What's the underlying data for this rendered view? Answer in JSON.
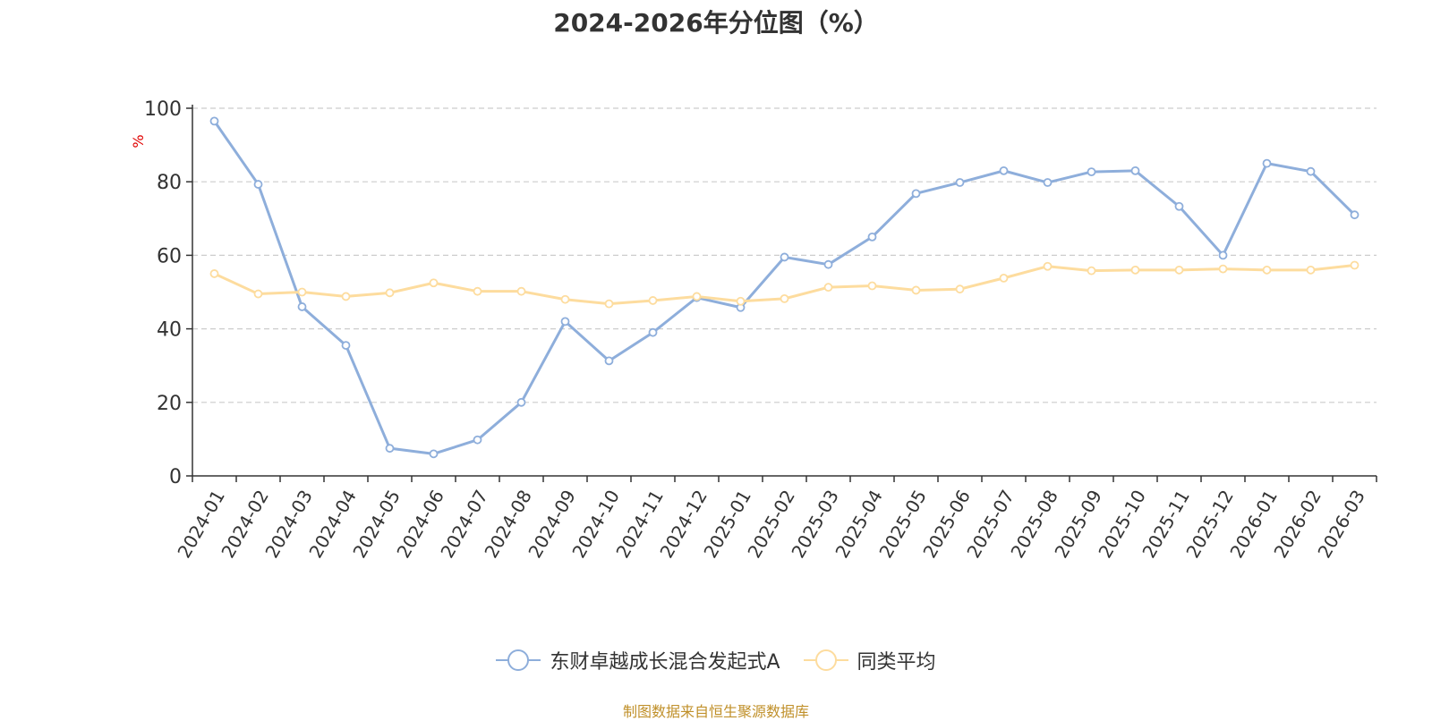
{
  "chart_data": {
    "type": "line",
    "title": "2024-2026年分位图（%）",
    "ylabel": "%",
    "xlabel": "",
    "ylim": [
      0,
      100
    ],
    "yticks": [
      0,
      20,
      40,
      60,
      80,
      100
    ],
    "grid": true,
    "legend_position": "bottom",
    "categories": [
      "2024-01",
      "2024-02",
      "2024-03",
      "2024-04",
      "2024-05",
      "2024-06",
      "2024-07",
      "2024-08",
      "2024-09",
      "2024-10",
      "2024-11",
      "2024-12",
      "2025-01",
      "2025-02",
      "2025-03",
      "2025-04",
      "2025-05",
      "2025-06",
      "2025-07",
      "2025-08",
      "2025-09",
      "2025-10",
      "2025-11",
      "2025-12",
      "2026-01",
      "2026-02",
      "2026-03"
    ],
    "series": [
      {
        "name": "东财卓越成长混合发起式A",
        "color": "#8eaedb",
        "values": [
          96.5,
          79.3,
          46.0,
          35.5,
          7.5,
          6.0,
          9.8,
          20.0,
          42.0,
          31.3,
          39.0,
          48.5,
          45.8,
          59.5,
          57.5,
          65.0,
          76.8,
          79.8,
          83.0,
          79.8,
          82.7,
          83.0,
          73.3,
          60.0,
          85.0,
          82.8,
          71.0
        ]
      },
      {
        "name": "同类平均",
        "color": "#fddc9e",
        "values": [
          55.0,
          49.5,
          50.0,
          48.8,
          49.8,
          52.5,
          50.2,
          50.2,
          48.0,
          46.8,
          47.7,
          48.8,
          47.5,
          48.2,
          51.3,
          51.7,
          50.5,
          50.8,
          53.8,
          57.0,
          55.8,
          56.0,
          56.0,
          56.3,
          56.0,
          56.0,
          57.3
        ]
      }
    ]
  },
  "legend": {
    "series0": "东财卓越成长混合发起式A",
    "series1": "同类平均"
  },
  "source": "制图数据来自恒生聚源数据库",
  "colors": {
    "axis": "#333333",
    "grid": "#cccccc",
    "ylabel": "#e00000",
    "source": "#c0902a"
  }
}
